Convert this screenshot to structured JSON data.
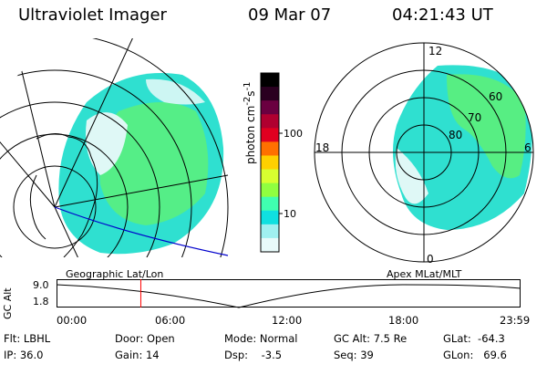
{
  "header": {
    "title": "Ultraviolet Imager",
    "date": "09 Mar 07",
    "time": "04:21:43 UT"
  },
  "left_map": {
    "caption": "Geographic Lat/Lon"
  },
  "right_map": {
    "caption": "Apex MLat/MLT",
    "mlt_labels": {
      "top": "12",
      "bottom": "0",
      "left": "18",
      "right": "6"
    },
    "lat_labels": [
      "60",
      "70",
      "80"
    ]
  },
  "colorbar": {
    "unit": "photon cm^-2 s^-1",
    "ticks": [
      "100",
      "10"
    ],
    "colors": [
      "#000000",
      "#2a0020",
      "#6a0040",
      "#b00030",
      "#e00020",
      "#ff7000",
      "#ffd000",
      "#d8ff30",
      "#90ff40",
      "#40ffb0",
      "#10e0e0",
      "#a0f0f0",
      "#e8fafa"
    ]
  },
  "altitude_plot": {
    "ylabel": "GC Alt",
    "yticks": [
      "9.0",
      "1.8"
    ],
    "xticks": [
      "00:00",
      "06:00",
      "12:00",
      "18:00",
      "23:59"
    ],
    "current_time_hours": 4.36,
    "cursor_color": "#ff0000"
  },
  "footer": {
    "flt": "Flt: LBHL",
    "ip": "IP: 36.0",
    "door": "Door: Open",
    "gain": "Gain: 14",
    "mode": "Mode: Normal",
    "dsp": "Dsp:    -3.5",
    "gcalt": "GC Alt: 7.5 Re",
    "seq": "Seq: 39",
    "glat": "GLat:  -64.3",
    "glon": "GLon:   69.6"
  }
}
